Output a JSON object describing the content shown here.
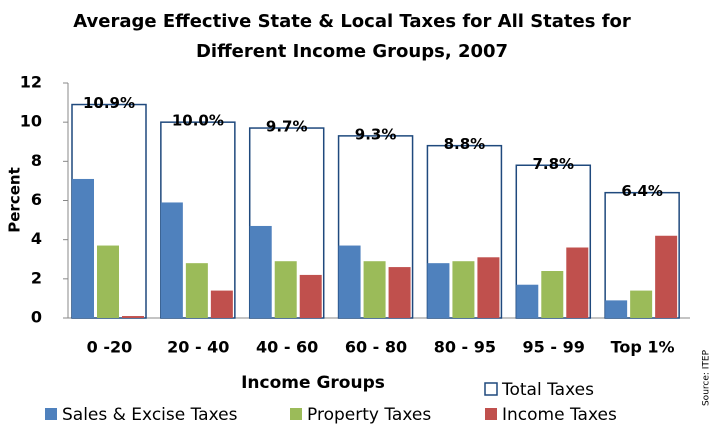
{
  "chart_data": {
    "type": "bar",
    "title": [
      "Average Effective State & Local Taxes for All States for",
      "Different Income Groups, 2007"
    ],
    "x_label": "Income Groups",
    "y_label": "Percent",
    "source": "Source: ITEP",
    "categories": [
      "0 -20",
      "20 - 40",
      "40 - 60",
      "60 - 80",
      "80 - 95",
      "95 - 99",
      "Top 1%"
    ],
    "series": [
      {
        "name": "Sales & Excise Taxes",
        "color": "#4f81bd",
        "values": [
          7.1,
          5.9,
          4.7,
          3.7,
          2.8,
          1.7,
          0.9
        ]
      },
      {
        "name": "Property Taxes",
        "color": "#9bbb59",
        "values": [
          3.7,
          2.8,
          2.9,
          2.9,
          2.9,
          2.4,
          1.4
        ]
      },
      {
        "name": "Income Taxes",
        "color": "#c0504d",
        "values": [
          0.1,
          1.4,
          2.2,
          2.6,
          3.1,
          3.6,
          4.2
        ]
      },
      {
        "name": "Total Taxes",
        "color": "#1f497d",
        "style": "outline",
        "values": [
          10.9,
          10.0,
          9.7,
          9.3,
          8.8,
          7.8,
          6.4
        ],
        "value_labels": [
          "10.9%",
          "10.0%",
          "9.7%",
          "9.3%",
          "8.8%",
          "7.8%",
          "6.4%"
        ]
      }
    ],
    "ylim": [
      0,
      12
    ],
    "yticks": [
      0,
      2,
      4,
      6,
      8,
      10,
      12
    ],
    "grid": false,
    "legend": "bottom"
  }
}
